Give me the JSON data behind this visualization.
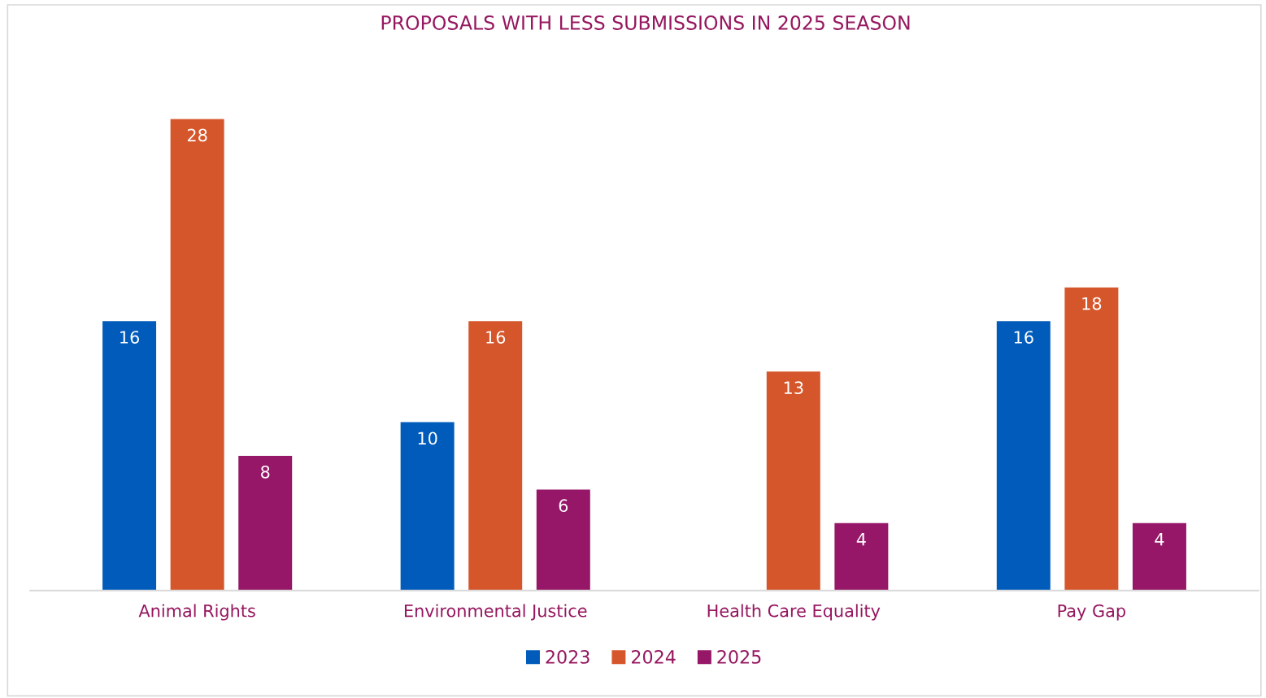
{
  "chart_data": {
    "type": "bar",
    "title": "PROPOSALS WITH LESS SUBMISSIONS IN 2025 SEASON",
    "categories": [
      "Animal Rights",
      "Environmental Justice",
      "Health Care Equality",
      "Pay Gap"
    ],
    "series": [
      {
        "name": "2023",
        "color": "#005bbb",
        "values": [
          16,
          10,
          null,
          16
        ]
      },
      {
        "name": "2024",
        "color": "#d6562b",
        "values": [
          28,
          16,
          13,
          18
        ]
      },
      {
        "name": "2025",
        "color": "#961768",
        "values": [
          8,
          6,
          4,
          4
        ]
      }
    ],
    "data_labels": true,
    "legend": "bottom",
    "grid": false
  }
}
